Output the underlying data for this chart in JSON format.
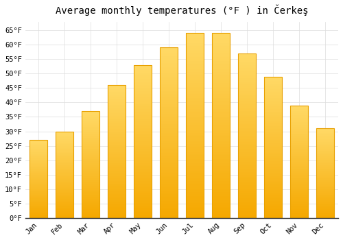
{
  "title": "Average monthly temperatures (°F ) in Čerkeş",
  "months": [
    "Jan",
    "Feb",
    "Mar",
    "Apr",
    "May",
    "Jun",
    "Jul",
    "Aug",
    "Sep",
    "Oct",
    "Nov",
    "Dec"
  ],
  "values": [
    27,
    30,
    37,
    46,
    53,
    59,
    64,
    64,
    57,
    49,
    39,
    31
  ],
  "bar_color_bottom": "#F5A800",
  "bar_color_top": "#FFD966",
  "bar_edge_color": "#E8A000",
  "background_color": "#FFFFFF",
  "grid_color": "#DDDDDD",
  "ylim": [
    0,
    68
  ],
  "yticks": [
    0,
    5,
    10,
    15,
    20,
    25,
    30,
    35,
    40,
    45,
    50,
    55,
    60,
    65
  ],
  "title_fontsize": 10,
  "tick_fontsize": 7.5,
  "figsize": [
    5.0,
    3.5
  ],
  "dpi": 100
}
